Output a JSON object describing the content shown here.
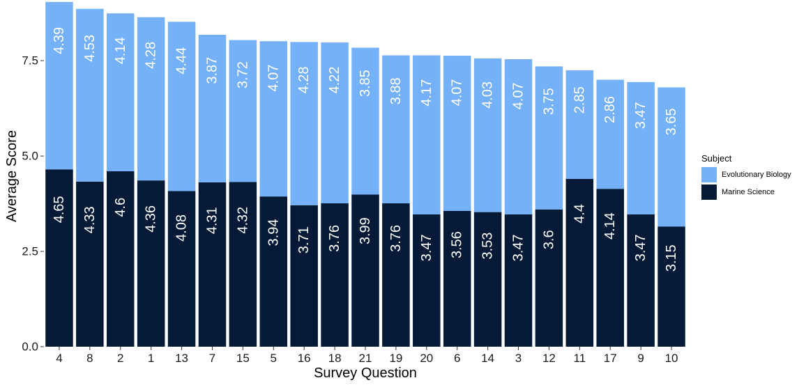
{
  "chart_data": {
    "type": "bar",
    "stacked": true,
    "xlabel": "Survey Question",
    "ylabel": "Average Score",
    "ylim": [
      0,
      9
    ],
    "yticks": [
      "0.0",
      "2.5",
      "5.0",
      "7.5"
    ],
    "ytick_values": [
      0,
      2.5,
      5,
      7.5
    ],
    "grid": false,
    "legend": {
      "title": "Subject",
      "position": "right"
    },
    "categories": [
      "4",
      "8",
      "2",
      "1",
      "13",
      "7",
      "15",
      "5",
      "16",
      "18",
      "21",
      "19",
      "20",
      "6",
      "14",
      "3",
      "12",
      "11",
      "17",
      "9",
      "10"
    ],
    "series": [
      {
        "name": "Marine Science",
        "color": "#041a36",
        "values": [
          4.65,
          4.33,
          4.6,
          4.36,
          4.08,
          4.31,
          4.32,
          3.94,
          3.71,
          3.76,
          3.99,
          3.76,
          3.47,
          3.56,
          3.53,
          3.47,
          3.6,
          4.4,
          4.14,
          3.47,
          3.15
        ],
        "labels": [
          "4.65",
          "4.33",
          "4.6",
          "4.36",
          "4.08",
          "4.31",
          "4.32",
          "3.94",
          "3.71",
          "3.76",
          "3.99",
          "3.76",
          "3.47",
          "3.56",
          "3.53",
          "3.47",
          "3.6",
          "4.4",
          "4.14",
          "3.47",
          "3.15"
        ]
      },
      {
        "name": "Evolutionary Biology",
        "color": "#74b1f8",
        "values": [
          4.39,
          4.53,
          4.14,
          4.28,
          4.44,
          3.87,
          3.72,
          4.07,
          4.28,
          4.22,
          3.85,
          3.88,
          4.17,
          4.07,
          4.03,
          4.07,
          3.75,
          2.85,
          2.86,
          3.47,
          3.65
        ],
        "labels": [
          "4.39",
          "4.53",
          "4.14",
          "4.28",
          "4.44",
          "3.87",
          "3.72",
          "4.07",
          "4.28",
          "4.22",
          "3.85",
          "3.88",
          "4.17",
          "4.07",
          "4.03",
          "4.07",
          "3.75",
          "2.85",
          "2.86",
          "3.47",
          "3.65"
        ]
      }
    ],
    "legend_order": [
      "Evolutionary Biology",
      "Marine Science"
    ]
  }
}
